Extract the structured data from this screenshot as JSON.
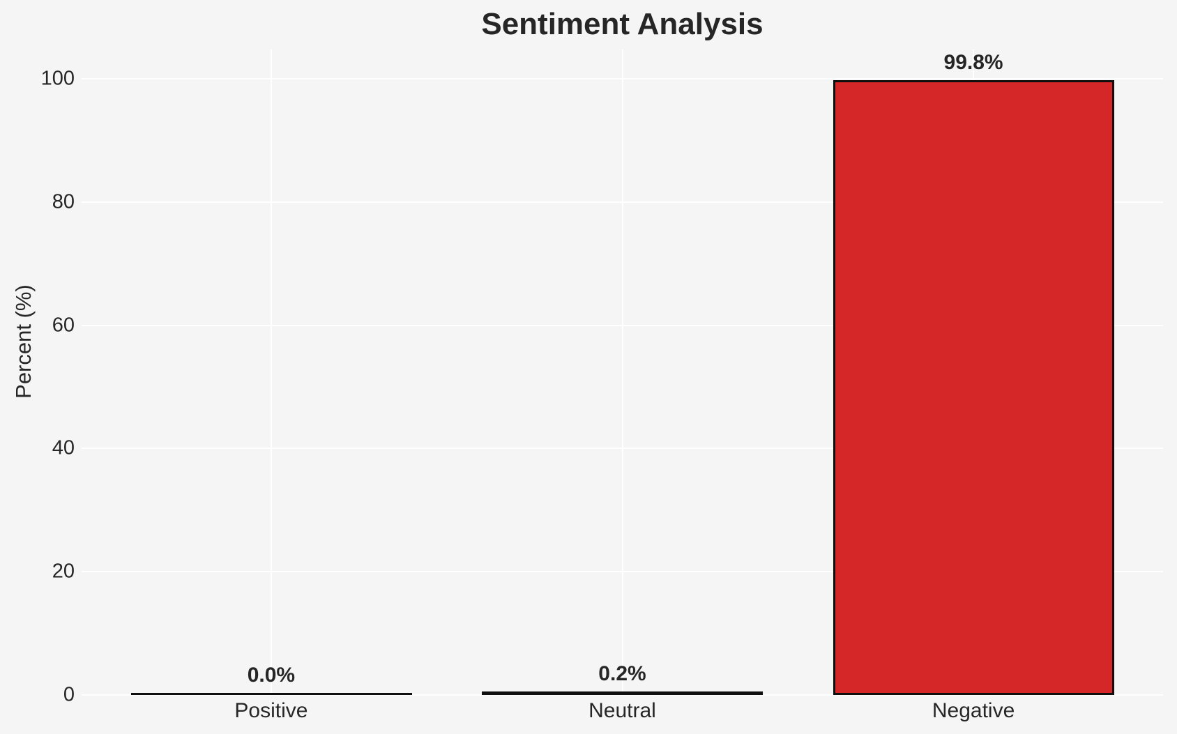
{
  "chart_data": {
    "type": "bar",
    "title": "Sentiment Analysis",
    "xlabel": "",
    "ylabel": "Percent (%)",
    "categories": [
      "Positive",
      "Neutral",
      "Negative"
    ],
    "values": [
      0.0,
      0.2,
      99.8
    ],
    "value_labels": [
      "0.0%",
      "0.2%",
      "99.8%"
    ],
    "yticks": [
      "0",
      "20",
      "40",
      "60",
      "80",
      "100"
    ],
    "ylim": [
      0,
      104.8
    ],
    "grid": true,
    "legend_position": "none",
    "colors": {
      "bar_fill": "#d62728",
      "bar_edge": "#0f0f0f",
      "background": "#f5f5f5",
      "gridline": "#ffffff",
      "text": "#262626"
    }
  }
}
